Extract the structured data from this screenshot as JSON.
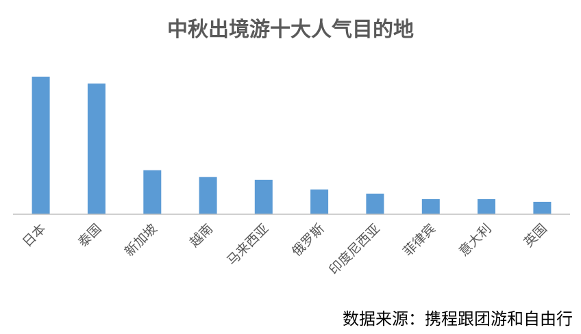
{
  "chart_data": {
    "type": "bar",
    "title": "中秋出境游十大人气目的地",
    "categories": [
      "日本",
      "泰国",
      "新加坡",
      "越南",
      "马来西亚",
      "俄罗斯",
      "印度尼西亚",
      "菲律宾",
      "意大利",
      "英国"
    ],
    "values": [
      100,
      95,
      32,
      27,
      25,
      18,
      15,
      11,
      11,
      9
    ],
    "ylim": [
      0,
      100
    ],
    "grid": false,
    "legend": "none",
    "bar_color": "#5B9BD5",
    "axis_color": "#BFBFBF",
    "label_color": "#595959"
  },
  "source": "数据来源：携程跟团游和自由行"
}
